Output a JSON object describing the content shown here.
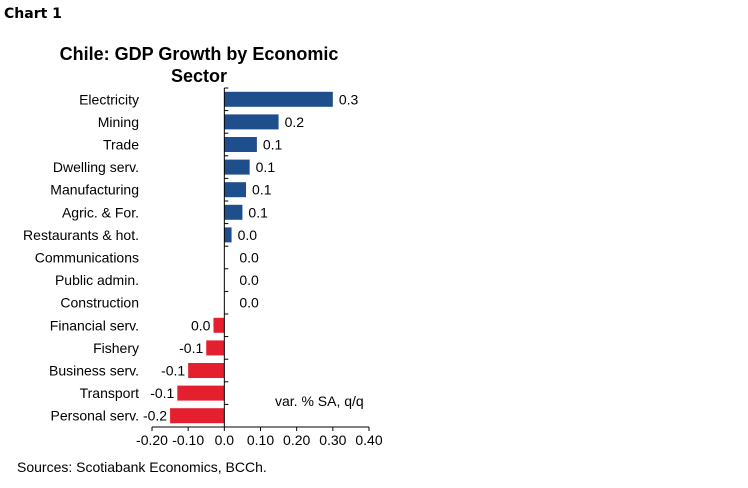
{
  "heading": "Chart 1",
  "chart_data": {
    "type": "bar",
    "orientation": "horizontal",
    "title_lines": [
      "Chile: GDP Growth by Economic",
      "Sector"
    ],
    "categories": [
      "Electricity",
      "Mining",
      "Trade",
      "Dwelling serv.",
      "Manufacturing",
      "Agric. & For.",
      "Restaurants & hot.",
      "Communications",
      "Public admin.",
      "Construction",
      "Financial serv.",
      "Fishery",
      "Business serv.",
      "Transport",
      "Personal serv."
    ],
    "values": [
      0.3,
      0.15,
      0.09,
      0.07,
      0.06,
      0.05,
      0.02,
      0.0,
      0.0,
      0.0,
      -0.03,
      -0.05,
      -0.1,
      -0.13,
      -0.15
    ],
    "data_labels": [
      "0.3",
      "0.2",
      "0.1",
      "0.1",
      "0.1",
      "0.1",
      "0.0",
      "0.0",
      "0.0",
      "0.0",
      "0.0",
      "-0.1",
      "-0.1",
      "-0.1",
      "-0.2"
    ],
    "xlim": [
      -0.2,
      0.4
    ],
    "x_ticks": [
      "-0.20",
      "-0.10",
      "0.0",
      "0.10",
      "0.20",
      "0.30",
      "0.40"
    ],
    "annotation": "var. % SA, q/q",
    "source": "Sources: Scotiabank Economics, BCCh.",
    "colors": {
      "positive": "#1f4e8c",
      "negative": "#e5202e"
    },
    "grid": false
  }
}
